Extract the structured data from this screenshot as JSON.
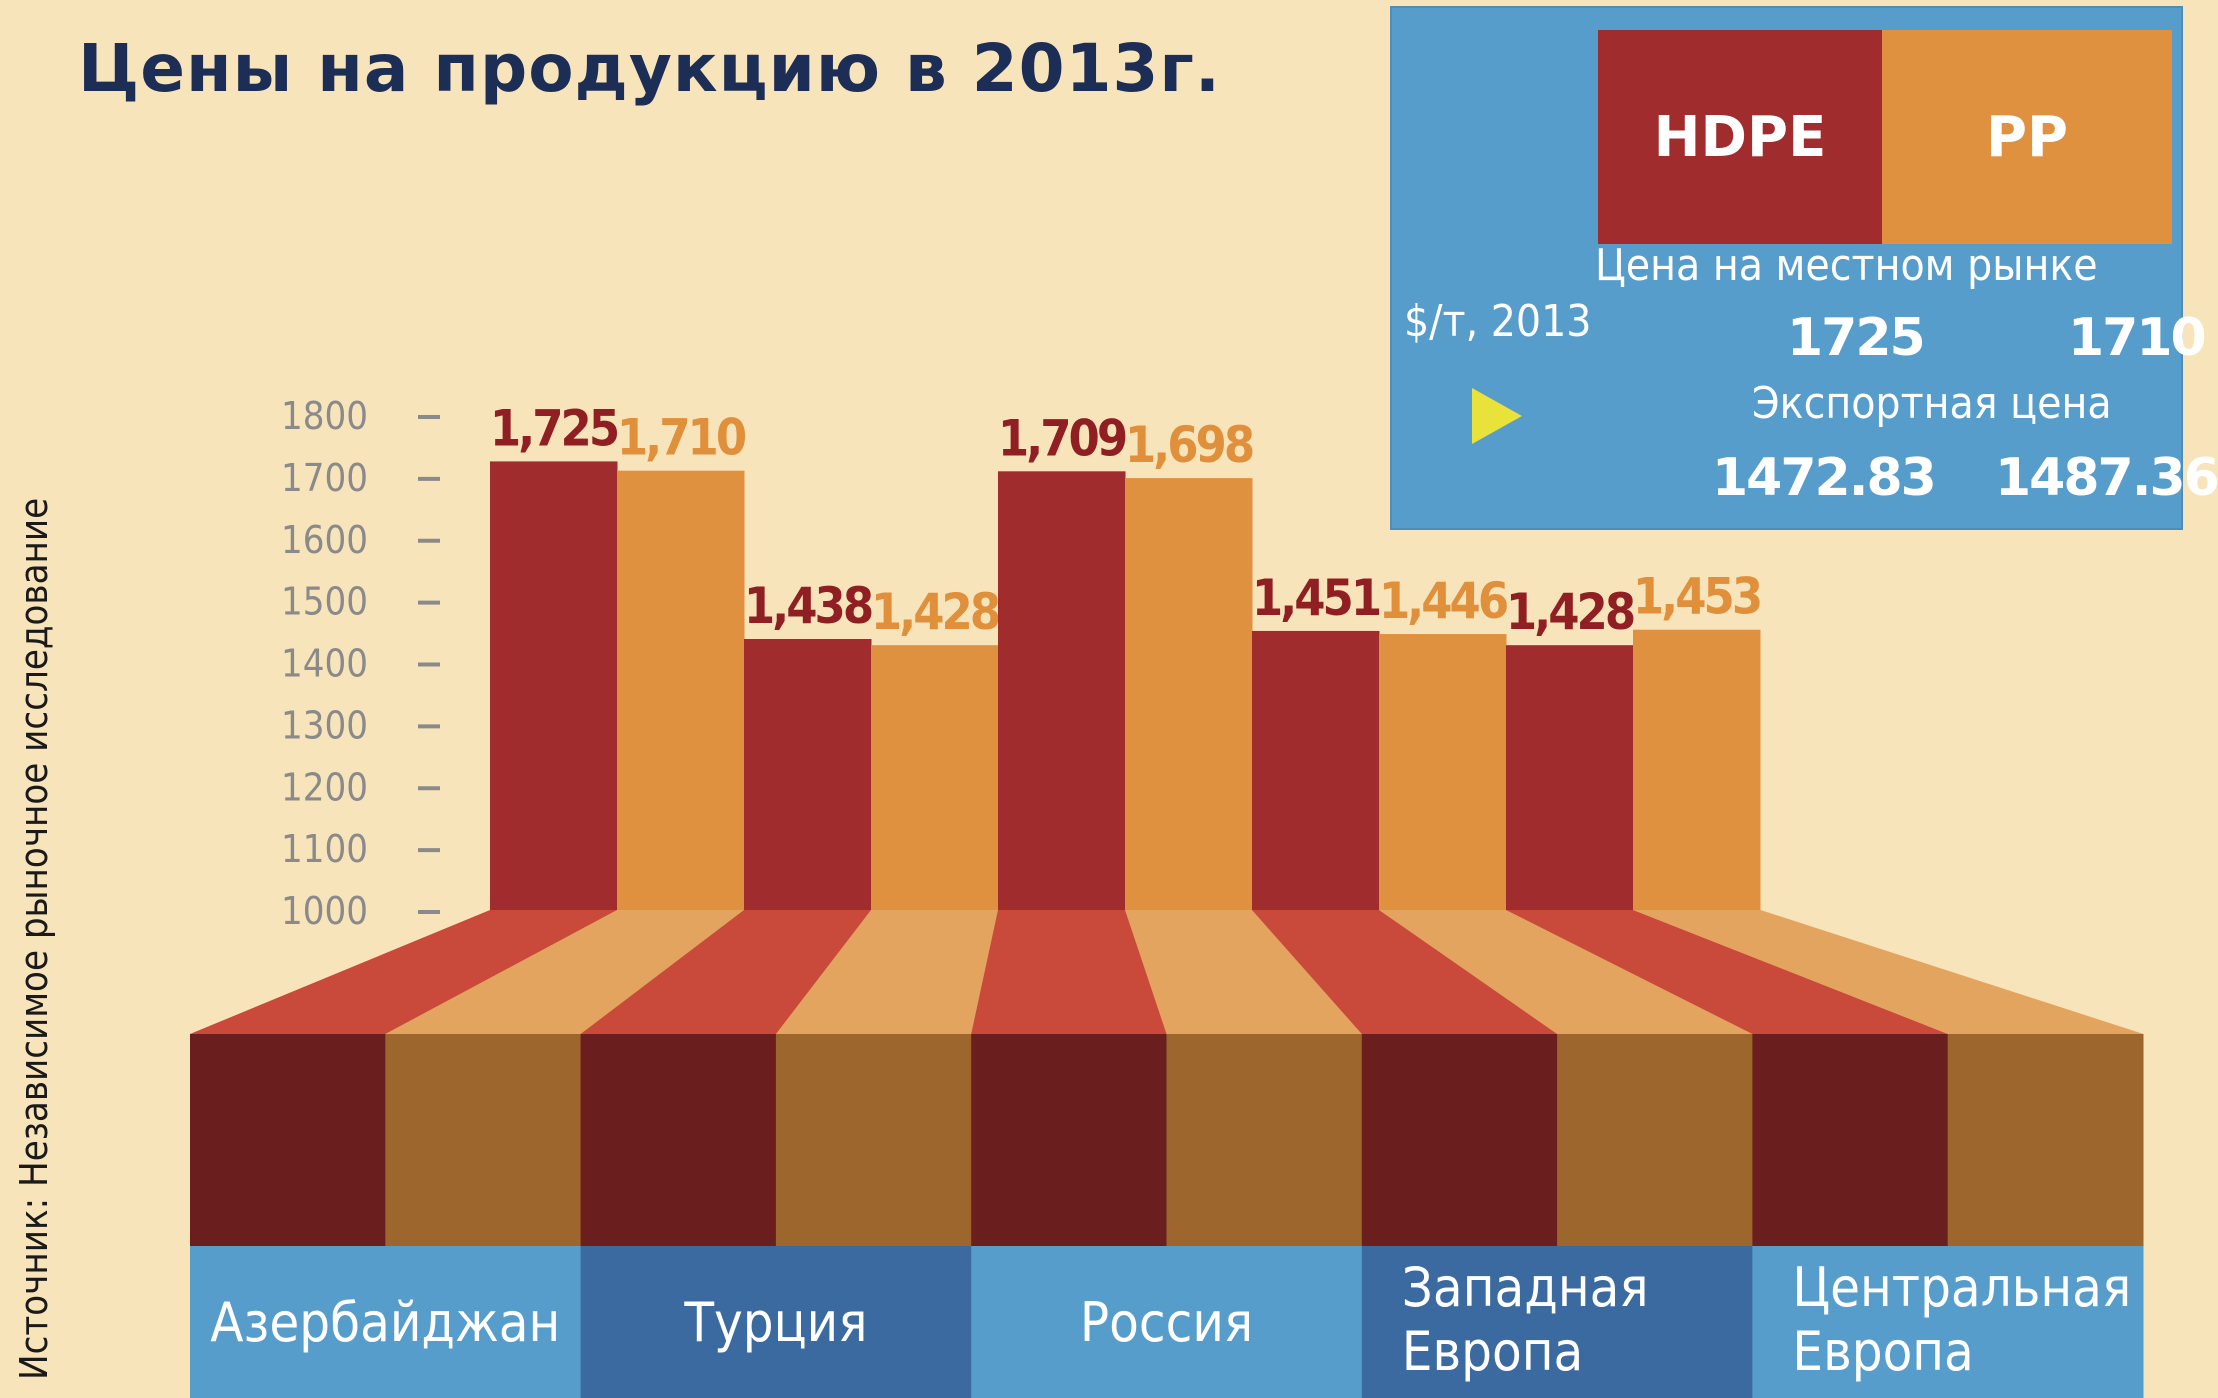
{
  "title": "Цены на продукцию в 2013г.",
  "source_label": "Источник:  Независимое рыночное исследование",
  "legend": {
    "hdpe": "HDPE",
    "pp": "PP",
    "hdpe_color": "#a12c2d",
    "pp_color": "#e09140",
    "unit": "$/т, 2013",
    "local_price_label": "Цена на местном рынке",
    "local_hdpe": "1725",
    "local_pp": "1710",
    "export_price_label": "Экспортная цена",
    "export_hdpe": "1472.83",
    "export_pp": "1487.36",
    "icon": "play-triangle-icon"
  },
  "chart_data": {
    "type": "bar",
    "title": "Цены на продукцию в 2013г.",
    "categories": [
      "Азербайджан",
      "Турция",
      "Россия",
      "Западная Европа",
      "Центральная Европа"
    ],
    "series": [
      {
        "name": "HDPE",
        "values": [
          1725,
          1438,
          1709,
          1451,
          1428
        ],
        "labels": [
          "1,725",
          "1,438",
          "1,709",
          "1,451",
          "1,428"
        ]
      },
      {
        "name": "PP",
        "values": [
          1710,
          1428,
          1698,
          1446,
          1453
        ],
        "labels": [
          "1,710",
          "1,428",
          "1,698",
          "1,446",
          "1,453"
        ]
      }
    ],
    "yticks": [
      "1000",
      "1100",
      "1200",
      "1300",
      "1400",
      "1500",
      "1600",
      "1700",
      "1800"
    ],
    "ylim": [
      1000,
      1800
    ],
    "grid": false
  }
}
